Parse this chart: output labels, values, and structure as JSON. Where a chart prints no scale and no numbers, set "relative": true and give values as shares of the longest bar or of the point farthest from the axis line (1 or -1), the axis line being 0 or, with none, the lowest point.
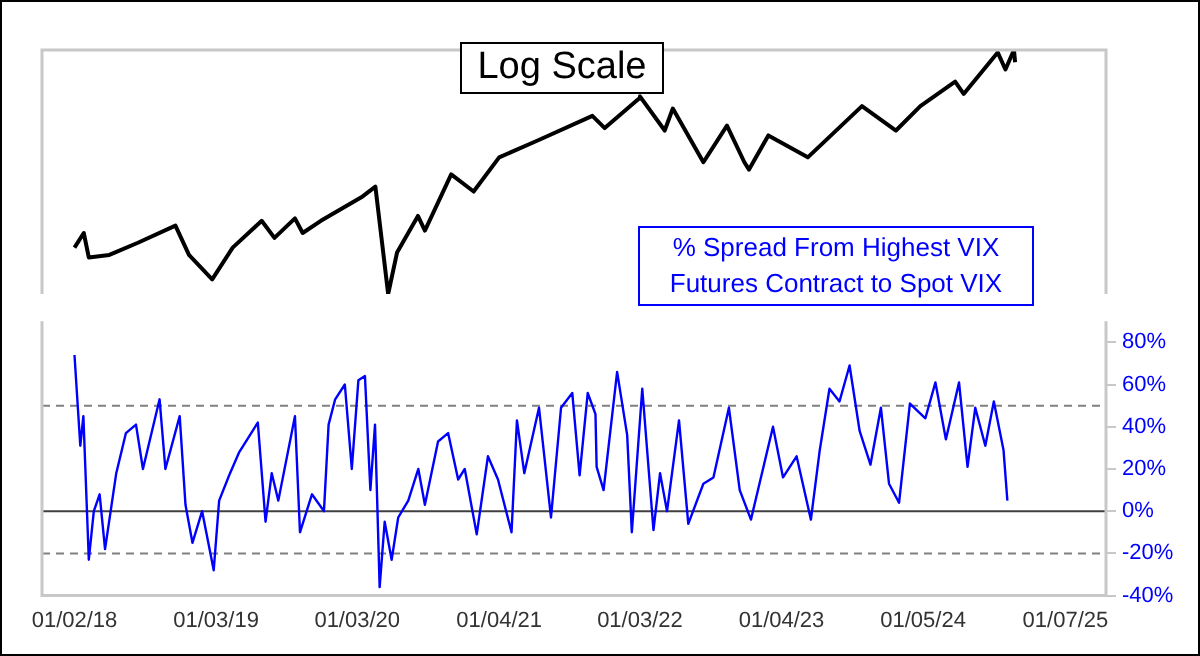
{
  "chart_data": [
    {
      "type": "line",
      "title": "Log Scale",
      "relative": true,
      "xlim": [
        "2017-10-10",
        "2025-04-22"
      ],
      "x": [
        "2018-01-02",
        "2018-01-26",
        "2018-02-08",
        "2018-04-02",
        "2018-06-15",
        "2018-09-20",
        "2018-10-25",
        "2018-12-24",
        "2019-02-15",
        "2019-05-01",
        "2019-06-03",
        "2019-07-26",
        "2019-08-15",
        "2019-10-01",
        "2020-01-17",
        "2020-02-19",
        "2020-03-23",
        "2020-04-15",
        "2020-06-08",
        "2020-06-26",
        "2020-09-02",
        "2020-10-30",
        "2021-01-04",
        "2021-04-15",
        "2021-09-02",
        "2021-10-04",
        "2021-12-31",
        "2022-01-03",
        "2022-03-08",
        "2022-03-29",
        "2022-06-16",
        "2022-08-16",
        "2022-09-30",
        "2022-10-12",
        "2022-12-01",
        "2023-03-13",
        "2023-07-31",
        "2023-10-27",
        "2023-12-29",
        "2024-03-28",
        "2024-04-19",
        "2024-07-16",
        "2024-08-05",
        "2024-08-27",
        "2024-08-30"
      ],
      "series": [
        {
          "color": "#000000",
          "values": [
            0.19,
            0.25,
            0.15,
            0.16,
            0.21,
            0.28,
            0.16,
            0.06,
            0.19,
            0.3,
            0.23,
            0.31,
            0.25,
            0.3,
            0.4,
            0.44,
            0.0,
            0.17,
            0.32,
            0.26,
            0.49,
            0.42,
            0.56,
            0.63,
            0.73,
            0.68,
            0.8,
            0.81,
            0.67,
            0.76,
            0.54,
            0.69,
            0.54,
            0.51,
            0.65,
            0.56,
            0.77,
            0.67,
            0.77,
            0.87,
            0.82,
            0.99,
            0.92,
            1.0,
            0.95
          ]
        }
      ]
    },
    {
      "type": "line",
      "xlim": [
        "2017-10-10",
        "2025-04-22"
      ],
      "xticks": [
        {
          "value": "2018-01-02",
          "label": "01/02/18"
        },
        {
          "value": "2019-01-03",
          "label": "01/03/19"
        },
        {
          "value": "2020-01-03",
          "label": "01/03/20"
        },
        {
          "value": "2021-01-04",
          "label": "01/04/21"
        },
        {
          "value": "2022-01-03",
          "label": "01/03/22"
        },
        {
          "value": "2023-01-04",
          "label": "01/04/23"
        },
        {
          "value": "2024-01-05",
          "label": "01/05/24"
        },
        {
          "value": "2025-01-07",
          "label": "01/07/25"
        }
      ],
      "ylim": [
        -40,
        90
      ],
      "yticks": [
        {
          "value": -40,
          "label": "-40%"
        },
        {
          "value": -20,
          "label": "-20%"
        },
        {
          "value": 0,
          "label": "0%"
        },
        {
          "value": 20,
          "label": "20%"
        },
        {
          "value": 40,
          "label": "40%"
        },
        {
          "value": 60,
          "label": "60%"
        },
        {
          "value": 80,
          "label": "80%"
        }
      ],
      "ref_lines": [
        {
          "axis": "y",
          "value": 50,
          "color": "#808080",
          "line_style": "dashed"
        },
        {
          "axis": "y",
          "value": 0,
          "color": "#404040",
          "line_style": "solid"
        },
        {
          "axis": "y",
          "value": -20,
          "color": "#808080",
          "line_style": "dashed"
        }
      ],
      "x": [
        "2018-01-02",
        "2018-01-17",
        "2018-01-25",
        "2018-02-08",
        "2018-02-21",
        "2018-03-08",
        "2018-03-22",
        "2018-04-20",
        "2018-05-15",
        "2018-06-10",
        "2018-06-28",
        "2018-08-10",
        "2018-08-25",
        "2018-10-01",
        "2018-10-16",
        "2018-11-03",
        "2018-11-28",
        "2018-12-28",
        "2019-01-11",
        "2019-02-06",
        "2019-03-04",
        "2019-04-21",
        "2019-05-11",
        "2019-05-27",
        "2019-06-13",
        "2019-07-26",
        "2019-08-08",
        "2019-09-08",
        "2019-10-09",
        "2019-10-21",
        "2019-11-07",
        "2019-12-02",
        "2019-12-20",
        "2020-01-06",
        "2020-01-23",
        "2020-02-06",
        "2020-02-18",
        "2020-03-01",
        "2020-03-14",
        "2020-04-01",
        "2020-04-18",
        "2020-05-14",
        "2020-06-09",
        "2020-06-26",
        "2020-07-30",
        "2020-08-25",
        "2020-09-20",
        "2020-10-07",
        "2020-11-07",
        "2020-12-06",
        "2021-01-01",
        "2021-02-05",
        "2021-02-19",
        "2021-03-10",
        "2021-04-17",
        "2021-05-18",
        "2021-06-13",
        "2021-07-12",
        "2021-07-31",
        "2021-08-21",
        "2021-09-10",
        "2021-09-13",
        "2021-10-01",
        "2021-11-05",
        "2021-12-01",
        "2021-12-13",
        "2022-01-09",
        "2022-02-07",
        "2022-02-24",
        "2022-03-14",
        "2022-04-14",
        "2022-05-08",
        "2022-06-16",
        "2022-07-12",
        "2022-08-21",
        "2022-09-18",
        "2022-10-17",
        "2022-12-13",
        "2023-01-08",
        "2023-02-12",
        "2023-03-21",
        "2023-04-13",
        "2023-05-08",
        "2023-06-03",
        "2023-06-29",
        "2023-07-25",
        "2023-08-22",
        "2023-09-18",
        "2023-10-09",
        "2023-11-04",
        "2023-12-02",
        "2024-01-11",
        "2024-02-06",
        "2024-03-04",
        "2024-04-07",
        "2024-04-29",
        "2024-05-19",
        "2024-06-14",
        "2024-07-06",
        "2024-07-31",
        "2024-08-10"
      ],
      "series": [
        {
          "name": "% Spread From Highest VIX Futures Contract to Spot VIX",
          "color": "#0000ff",
          "values": [
            74,
            31,
            45,
            -23,
            0,
            8,
            -18,
            18,
            37,
            41,
            20,
            53,
            20,
            45,
            3,
            -15,
            0,
            -28,
            5,
            17,
            28,
            42,
            -5,
            18,
            5,
            45,
            -10,
            8,
            0,
            41,
            53,
            60,
            20,
            62,
            64,
            10,
            41,
            -36,
            -5,
            -23,
            -3,
            5,
            20,
            3,
            33,
            37,
            15,
            20,
            -11,
            26,
            15,
            -10,
            43,
            18,
            49,
            -3,
            49,
            56,
            17,
            56,
            46,
            21,
            10,
            66,
            36,
            -10,
            58,
            -9,
            18,
            0,
            43,
            -6,
            13,
            16,
            49,
            10,
            -4,
            40,
            16,
            26,
            -4,
            29,
            58,
            52,
            69,
            38,
            22,
            49,
            13,
            4,
            51,
            44,
            61,
            34,
            61,
            21,
            49,
            31,
            52,
            29,
            5
          ]
        }
      ]
    }
  ]
}
